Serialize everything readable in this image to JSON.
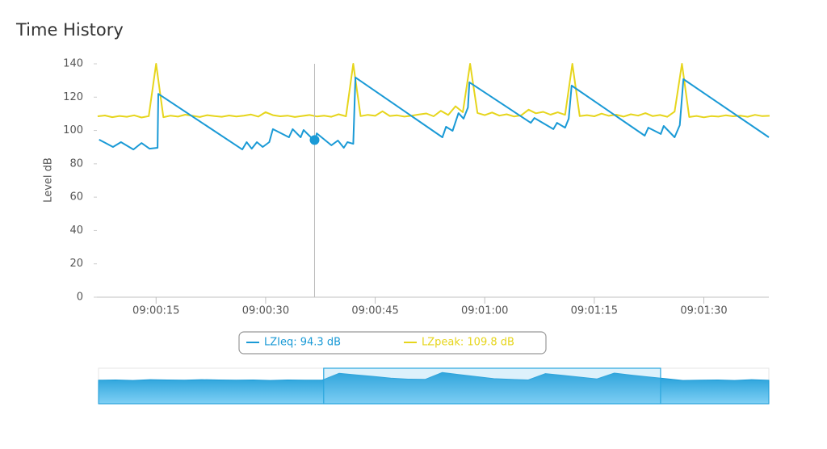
{
  "chart_data": {
    "type": "line",
    "title": "Time History",
    "y_label": "Level dB",
    "xlim": [
      6.9,
      98.9
    ],
    "xticks": [
      {
        "value": 15,
        "label": "09:00:15"
      },
      {
        "value": 30,
        "label": "09:00:30"
      },
      {
        "value": 45,
        "label": "09:00:45"
      },
      {
        "value": 60,
        "label": "09:01:00"
      },
      {
        "value": 75,
        "label": "09:01:15"
      },
      {
        "value": 90,
        "label": "09:01:30"
      }
    ],
    "ylim": [
      0,
      140
    ],
    "yticks": [
      0,
      20,
      40,
      60,
      80,
      100,
      120,
      140
    ],
    "grid": false,
    "series": [
      {
        "name": "LZIeq: 94.3 dB",
        "color": "#1a9ad6",
        "x": [
          7.2,
          9.1,
          10.2,
          11.9,
          13.0,
          14.1,
          15.2,
          15.3,
          26.8,
          27.4,
          28.1,
          28.8,
          29.6,
          30.5,
          31.0,
          33.2,
          33.7,
          34.8,
          35.2,
          36.2,
          36.8,
          37.0,
          39.0,
          39.9,
          40.7,
          41.2,
          42.0,
          42.3,
          54.2,
          54.7,
          55.6,
          56.4,
          57.1,
          57.7,
          57.9,
          66.3,
          66.8,
          69.4,
          69.9,
          71.0,
          71.5,
          71.9,
          81.9,
          82.4,
          84.1,
          84.5,
          86.0,
          86.7,
          87.2,
          98.9
        ],
        "values": [
          94.5,
          90.1,
          93,
          88.6,
          92.5,
          89.1,
          89.6,
          122,
          88.6,
          93,
          89.1,
          93,
          90.1,
          93,
          100.8,
          95.9,
          100.8,
          95.9,
          100.3,
          95.9,
          93.5,
          98.3,
          91.1,
          94,
          89.6,
          93,
          92,
          131.8,
          95.9,
          102.2,
          99.8,
          110.4,
          107.1,
          113.8,
          128.9,
          104.6,
          107.5,
          100.8,
          104.6,
          101.7,
          107.1,
          126.9,
          96.9,
          101.7,
          97.9,
          102.7,
          95.9,
          103.2,
          130.8,
          95.9
        ]
      },
      {
        "name": "LZpeak: 109.8 dB",
        "color": "#e6d51c",
        "x": [
          7,
          8,
          9,
          10,
          11,
          12,
          13,
          14,
          15,
          16,
          17,
          18,
          19,
          20,
          21,
          22,
          23,
          24,
          25,
          26,
          27,
          28,
          29,
          30,
          31,
          32,
          33,
          34,
          35,
          36,
          37,
          38,
          39,
          40,
          41,
          42,
          43,
          44,
          45,
          46,
          47,
          48,
          49,
          50,
          51,
          52,
          53,
          54,
          55,
          56,
          57,
          58,
          59,
          60,
          61,
          62,
          63,
          64,
          65,
          66,
          67,
          68,
          69,
          70,
          71,
          72,
          73,
          74,
          75,
          76,
          77,
          78,
          79,
          80,
          81,
          82,
          83,
          84,
          85,
          86,
          87,
          88,
          89,
          90,
          91,
          92,
          93,
          94,
          95,
          96,
          97,
          98,
          99
        ],
        "values": [
          108.5,
          109,
          108,
          108.7,
          108.2,
          109.1,
          107.8,
          108.6,
          140,
          108,
          108.9,
          108.3,
          109.5,
          108.8,
          108.1,
          109.2,
          108.6,
          108.2,
          109,
          108.4,
          108.9,
          109.6,
          108.3,
          111,
          109.2,
          108.5,
          108.9,
          108.1,
          108.7,
          109.3,
          108.4,
          108.9,
          108.2,
          109.7,
          108.5,
          140,
          108.6,
          109.4,
          108.8,
          111.5,
          108.7,
          109.1,
          108.3,
          108.9,
          109.6,
          110.2,
          108.5,
          111.8,
          109.3,
          114.5,
          111,
          140,
          110.5,
          109.2,
          110.8,
          108.9,
          109.7,
          108.4,
          109.1,
          112.5,
          110.3,
          111.2,
          109.5,
          110.9,
          109.4,
          140,
          108.6,
          109.2,
          108.5,
          110.1,
          108.8,
          109.5,
          108.3,
          109.7,
          108.9,
          110.4,
          108.6,
          109.3,
          108.2,
          111.3,
          140,
          108.1,
          108.7,
          107.9,
          108.6,
          108.3,
          109.1,
          108.5,
          108.9,
          108.2,
          109.4,
          108.6,
          108.8
        ]
      }
    ],
    "cursor": {
      "x": 36.7,
      "y": 94.3
    },
    "navigator": {
      "ylim": [
        0,
        140
      ],
      "values": [
        93,
        94,
        92,
        95,
        94,
        93,
        95,
        94,
        93,
        94,
        92,
        94,
        93,
        93,
        120,
        114,
        108,
        101,
        97,
        96,
        123,
        115,
        107,
        99,
        96,
        94,
        119,
        112,
        105,
        98,
        121,
        113,
        106,
        99,
        92,
        93,
        94,
        92,
        95,
        93
      ],
      "selection": [
        13.1,
        32.7
      ]
    }
  }
}
